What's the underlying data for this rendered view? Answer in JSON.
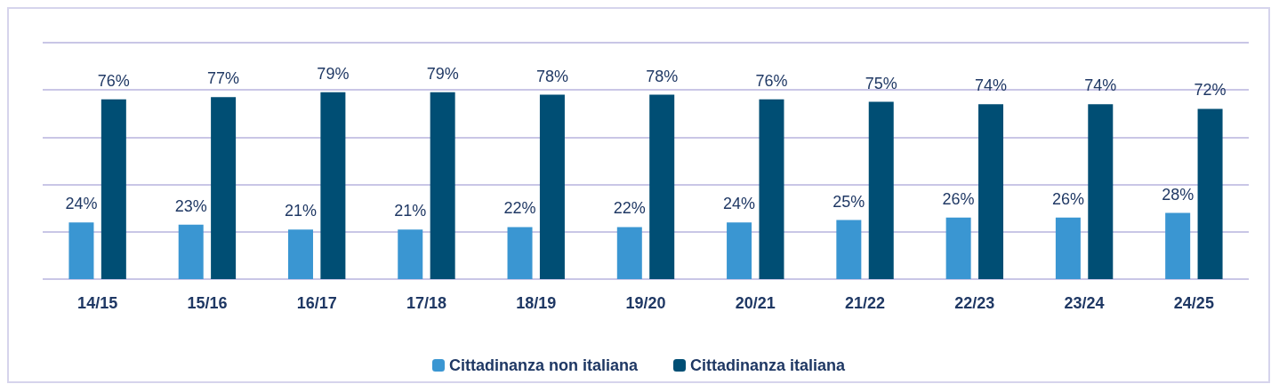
{
  "chart_data": {
    "type": "bar",
    "categories": [
      "14/15",
      "15/16",
      "16/17",
      "17/18",
      "18/19",
      "19/20",
      "20/21",
      "21/22",
      "22/23",
      "23/24",
      "24/25"
    ],
    "series": [
      {
        "name": "Cittadinanza non italiana",
        "color": "#3a96d2",
        "values": [
          24,
          23,
          21,
          21,
          22,
          22,
          24,
          25,
          26,
          26,
          28
        ],
        "value_labels": [
          "24%",
          "23%",
          "21%",
          "21%",
          "22%",
          "22%",
          "24%",
          "25%",
          "26%",
          "26%",
          "28%"
        ]
      },
      {
        "name": "Cittadinanza italiana",
        "color": "#004e74",
        "values": [
          76,
          77,
          79,
          79,
          78,
          78,
          76,
          75,
          74,
          74,
          72
        ],
        "value_labels": [
          "76%",
          "77%",
          "79%",
          "79%",
          "78%",
          "78%",
          "76%",
          "75%",
          "74%",
          "74%",
          "72%"
        ]
      }
    ],
    "ylim": [
      0,
      100
    ],
    "yticks": [
      {
        "value": 0,
        "label": null
      },
      {
        "value": 20,
        "label": null
      },
      {
        "value": 40,
        "label": null
      },
      {
        "value": 60,
        "label": null
      },
      {
        "value": 80,
        "label": null
      },
      {
        "value": 100,
        "label": null
      }
    ],
    "grid": "y",
    "tick_labels": "x",
    "legend": "bottom"
  }
}
